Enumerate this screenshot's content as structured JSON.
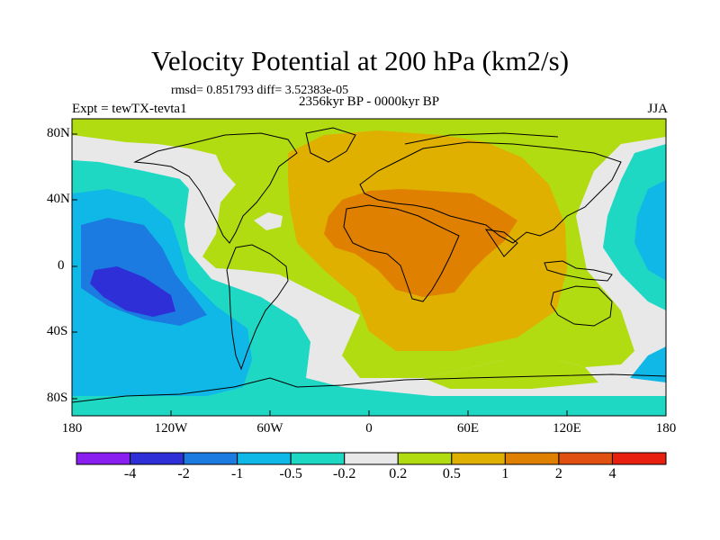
{
  "title": "Velocity Potential at 200 hPa (km2/s)",
  "stats": "rmsd= 0.851793 diff= 3.52383e-05",
  "period": "2356kyr BP - 0000kyr BP",
  "experiment": "Expt = tewTX-tevta1",
  "season": "JJA",
  "map": {
    "projection": "cylindrical equidistant",
    "lon_range": [
      -180,
      180
    ],
    "lat_range": [
      -90,
      90
    ],
    "y_ticks": [
      "80N",
      "40N",
      "0",
      "40S",
      "80S"
    ],
    "x_ticks": [
      "180",
      "120W",
      "60W",
      "0",
      "60E",
      "120E",
      "180"
    ]
  },
  "colorbar": {
    "labels": [
      "-4",
      "-2",
      "-1",
      "-0.5",
      "-0.2",
      "0.2",
      "0.5",
      "1",
      "2",
      "4"
    ],
    "colors": [
      "#8a1ef0",
      "#2e2fd6",
      "#1b7be0",
      "#10b8e8",
      "#1ed8c4",
      "#e8e8e8",
      "#b2dc12",
      "#e0b000",
      "#e08000",
      "#e05010",
      "#e82010"
    ]
  }
}
